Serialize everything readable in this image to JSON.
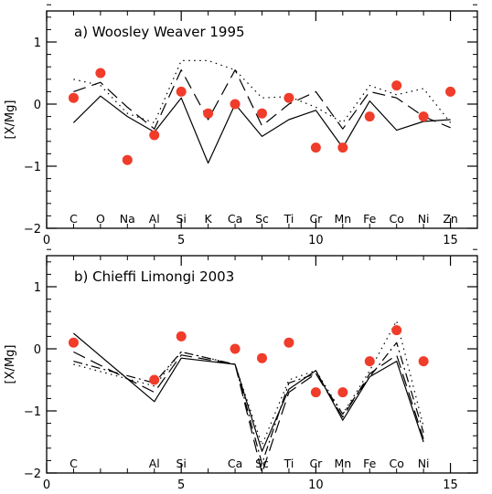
{
  "chart_data": [
    {
      "type": "line",
      "title": "a) Woosley Weaver 1995",
      "xlabel": "",
      "ylabel": "[X/Mg]",
      "xlim": [
        0,
        16
      ],
      "ylim": [
        -2,
        1.5
      ],
      "xticks": [
        0,
        5,
        10,
        15
      ],
      "yticks": [
        -2,
        -1,
        0,
        1
      ],
      "elements": [
        {
          "x": 1,
          "label": "C"
        },
        {
          "x": 2,
          "label": "O"
        },
        {
          "x": 3,
          "label": "Na"
        },
        {
          "x": 4,
          "label": "Al"
        },
        {
          "x": 5,
          "label": "Si"
        },
        {
          "x": 6,
          "label": "K"
        },
        {
          "x": 7,
          "label": "Ca"
        },
        {
          "x": 8,
          "label": "Sc"
        },
        {
          "x": 9,
          "label": "Ti"
        },
        {
          "x": 10,
          "label": "Cr"
        },
        {
          "x": 11,
          "label": "Mn"
        },
        {
          "x": 12,
          "label": "Fe"
        },
        {
          "x": 13,
          "label": "Co"
        },
        {
          "x": 14,
          "label": "Ni"
        },
        {
          "x": 15,
          "label": "Zn"
        }
      ],
      "points": {
        "color": "#f03c2a",
        "x": [
          1,
          2,
          3,
          4,
          5,
          6,
          7,
          8,
          9,
          10,
          11,
          12,
          13,
          14,
          15
        ],
        "y": [
          0.1,
          0.5,
          -0.9,
          -0.5,
          0.2,
          -0.15,
          0.0,
          -0.15,
          0.1,
          -0.7,
          -0.7,
          -0.2,
          0.3,
          -0.2,
          0.2
        ]
      },
      "series": [
        {
          "style": "solid",
          "x": [
            1,
            2,
            3,
            4,
            5,
            6,
            7,
            8,
            9,
            10,
            11,
            12,
            13,
            14,
            15
          ],
          "y": [
            -0.3,
            0.13,
            -0.2,
            -0.45,
            0.1,
            -0.95,
            0.0,
            -0.52,
            -0.25,
            -0.1,
            -0.7,
            0.05,
            -0.42,
            -0.28,
            -0.25
          ]
        },
        {
          "style": "dashed",
          "x": [
            1,
            2,
            3,
            4,
            5,
            6,
            7,
            8,
            9,
            10,
            11,
            12,
            13,
            14,
            15
          ],
          "y": [
            0.2,
            0.35,
            -0.05,
            -0.4,
            0.55,
            -0.25,
            0.55,
            -0.35,
            0.0,
            0.2,
            -0.4,
            0.2,
            0.1,
            -0.2,
            -0.38
          ]
        },
        {
          "style": "dotted",
          "x": [
            1,
            2,
            3,
            4,
            5,
            6,
            7,
            8,
            9,
            10,
            11,
            12,
            13,
            14,
            15
          ],
          "y": [
            0.4,
            0.3,
            -0.15,
            -0.3,
            0.7,
            0.7,
            0.55,
            0.1,
            0.12,
            -0.05,
            -0.3,
            0.3,
            0.15,
            0.25,
            -0.3
          ]
        }
      ]
    },
    {
      "type": "line",
      "title": "b) Chieffi Limongi 2003",
      "xlabel": "",
      "ylabel": "[X/Mg]",
      "xlim": [
        0,
        16
      ],
      "ylim": [
        -2,
        1.5
      ],
      "xticks": [
        0,
        5,
        10,
        15
      ],
      "yticks": [
        -2,
        -1,
        0,
        1
      ],
      "elements": [
        {
          "x": 1,
          "label": "C"
        },
        {
          "x": 4,
          "label": "Al"
        },
        {
          "x": 5,
          "label": "Si"
        },
        {
          "x": 7,
          "label": "Ca"
        },
        {
          "x": 8,
          "label": "Sc"
        },
        {
          "x": 9,
          "label": "Ti"
        },
        {
          "x": 10,
          "label": "Cr"
        },
        {
          "x": 11,
          "label": "Mn"
        },
        {
          "x": 12,
          "label": "Fe"
        },
        {
          "x": 13,
          "label": "Co"
        },
        {
          "x": 14,
          "label": "Ni"
        }
      ],
      "points": {
        "color": "#f03c2a",
        "x": [
          1,
          4,
          5,
          7,
          8,
          9,
          10,
          11,
          12,
          13,
          14
        ],
        "y": [
          0.1,
          -0.5,
          0.2,
          0.0,
          -0.15,
          0.1,
          -0.7,
          -0.7,
          -0.2,
          0.3,
          -0.2
        ]
      },
      "series": [
        {
          "style": "solid",
          "x": [
            1,
            4,
            5,
            7,
            8,
            9,
            10,
            11,
            12,
            13,
            14
          ],
          "y": [
            0.25,
            -0.85,
            -0.15,
            -0.25,
            -1.65,
            -0.65,
            -0.35,
            -1.15,
            -0.45,
            -0.2,
            -1.5
          ]
        },
        {
          "style": "dashed",
          "x": [
            1,
            4,
            5,
            7,
            8,
            9,
            10,
            11,
            12,
            13,
            14
          ],
          "y": [
            -0.05,
            -0.7,
            -0.1,
            -0.25,
            -2.0,
            -0.7,
            -0.4,
            -1.1,
            -0.4,
            -0.1,
            -1.45
          ]
        },
        {
          "style": "dashdot",
          "x": [
            1,
            4,
            5,
            7,
            8,
            9,
            10,
            11,
            12,
            13,
            14
          ],
          "y": [
            -0.2,
            -0.55,
            -0.05,
            -0.25,
            -1.85,
            -0.55,
            -0.4,
            -1.05,
            -0.45,
            0.1,
            -1.35
          ]
        },
        {
          "style": "dotted",
          "x": [
            1,
            4,
            5,
            7,
            8,
            9,
            10,
            11,
            12,
            13,
            14
          ],
          "y": [
            -0.25,
            -0.6,
            -0.05,
            -0.25,
            -1.55,
            -0.5,
            -0.35,
            -1.05,
            -0.35,
            0.45,
            -1.25
          ]
        }
      ]
    }
  ]
}
